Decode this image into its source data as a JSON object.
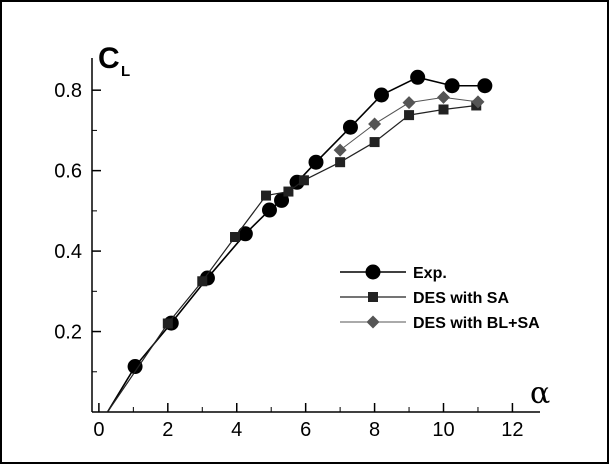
{
  "chart_data": {
    "type": "line",
    "ylabel": {
      "main": "C",
      "sub": "L"
    },
    "xlabel": "α",
    "xlim": [
      -0.2,
      12.8
    ],
    "ylim": [
      0.0,
      0.88
    ],
    "xticks": [
      0,
      2,
      4,
      6,
      8,
      10,
      12
    ],
    "yticks": [
      0.2,
      0.4,
      0.6,
      0.8
    ],
    "xtick_labels": [
      "0",
      "2",
      "4",
      "6",
      "8",
      "10",
      "12"
    ],
    "ytick_labels": [
      "0.2",
      "0.4",
      "0.6",
      "0.8"
    ],
    "grid": false,
    "legend_position": "right",
    "series": [
      {
        "name": "Exp.",
        "marker": "circle",
        "color": "#000000",
        "x": [
          0.25,
          1.05,
          2.1,
          3.15,
          4.25,
          4.95,
          5.3,
          5.75,
          6.3,
          7.3,
          8.2,
          9.25,
          10.25,
          11.2
        ],
        "y": [
          0.0,
          0.113,
          0.221,
          0.333,
          0.443,
          0.502,
          0.526,
          0.571,
          0.621,
          0.708,
          0.788,
          0.832,
          0.811,
          0.811
        ]
      },
      {
        "name": "DES with SA",
        "marker": "square",
        "color": "#222222",
        "x": [
          0.25,
          2.0,
          3.0,
          3.95,
          4.85,
          5.5,
          5.95,
          7.0,
          8.0,
          9.0,
          10.0,
          10.95
        ],
        "y": [
          0.0,
          0.22,
          0.325,
          0.435,
          0.538,
          0.548,
          0.576,
          0.621,
          0.671,
          0.738,
          0.752,
          0.762
        ]
      },
      {
        "name": "DES with BL+SA",
        "marker": "diamond",
        "color": "#555555",
        "x": [
          7.0,
          8.0,
          9.0,
          10.0,
          11.0
        ],
        "y": [
          0.651,
          0.716,
          0.769,
          0.782,
          0.771
        ]
      }
    ]
  }
}
